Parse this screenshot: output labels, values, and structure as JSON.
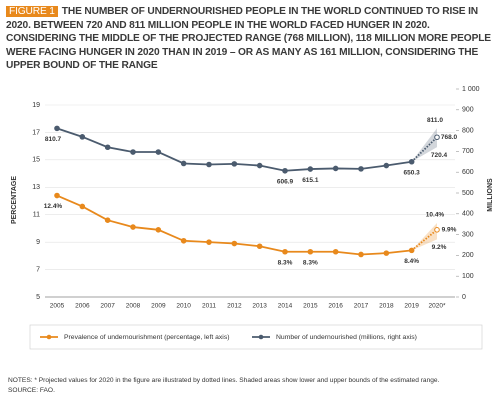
{
  "chart_data": {
    "type": "line",
    "figure_label": "FIGURE 1",
    "title": "THE NUMBER OF UNDERNOURISHED PEOPLE IN THE WORLD CONTINUED TO RISE IN 2020. BETWEEN 720 AND 811 MILLION PEOPLE IN THE WORLD FACED HUNGER IN 2020. CONSIDERING THE MIDDLE OF THE PROJECTED RANGE (768 MILLION), 118 MILLION MORE PEOPLE WERE FACING HUNGER IN 2020 THAN IN 2019 – OR AS MANY AS 161 MILLION, CONSIDERING THE UPPER BOUND OF THE RANGE",
    "ylabel": "PERCENTAGE",
    "y2label": "MILLIONS",
    "categories": [
      "2005",
      "2006",
      "2007",
      "2008",
      "2009",
      "2010",
      "2011",
      "2012",
      "2013",
      "2014",
      "2015",
      "2016",
      "2017",
      "2018",
      "2019",
      "2020*"
    ],
    "ylim": [
      5,
      19
    ],
    "yticks": [
      5,
      7,
      9,
      11,
      13,
      15,
      17,
      19
    ],
    "y2lim": [
      0,
      1000
    ],
    "y2ticks": [
      0,
      100,
      200,
      300,
      400,
      500,
      600,
      700,
      800,
      900,
      {
        "value": 1000,
        "label": "1 000"
      }
    ],
    "grid": true,
    "series": [
      {
        "name": "Prevalence of undernourishment (percentage, left axis)",
        "color": "#e8891c",
        "values": [
          12.4,
          11.6,
          10.6,
          10.1,
          9.9,
          9.1,
          9.0,
          8.9,
          8.7,
          8.3,
          8.3,
          8.3,
          8.1,
          8.2,
          8.4,
          9.9
        ],
        "value_labels": [
          "12.4%",
          null,
          null,
          null,
          null,
          null,
          null,
          null,
          null,
          "8.3%",
          "8.3%",
          null,
          null,
          null,
          "8.4%",
          "9.9%"
        ],
        "bounds": [
          {
            "value": 9.2,
            "label": "9.2%"
          },
          {
            "value": 10.4,
            "label": "10.4%"
          }
        ]
      },
      {
        "name": "Number of undernourished (millions, right axis)",
        "color": "#4b5b6e",
        "axis": "y2",
        "values": [
          810.7,
          770,
          720,
          697,
          697,
          642,
          637,
          640,
          632,
          606.9,
          615.1,
          618,
          616,
          632,
          650.3,
          768
        ],
        "value_labels": [
          "810.7",
          null,
          null,
          null,
          null,
          null,
          null,
          null,
          null,
          "606.9",
          "615.1",
          null,
          null,
          null,
          "650.3",
          "768.0"
        ],
        "bounds": [
          {
            "value": 720.4,
            "label": "720.4"
          },
          {
            "value": 811.0,
            "label": "811.0"
          }
        ]
      }
    ],
    "notes": "NOTES: * Projected values for 2020 in the figure are illustrated by dotted lines. Shaded areas show lower and upper bounds of the estimated range.",
    "source": "SOURCE: FAO."
  }
}
